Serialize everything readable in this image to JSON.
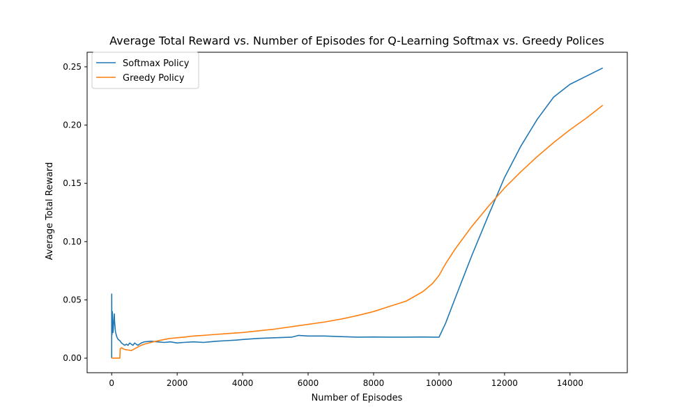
{
  "chart_data": {
    "type": "line",
    "title": "Average Total Reward vs. Number of Episodes for Q-Learning Softmax vs. Greedy Polices",
    "xlabel": "Number of Episodes",
    "ylabel": "Average Total Reward",
    "xlim": [
      -750,
      15750
    ],
    "ylim": [
      -0.0125,
      0.2625
    ],
    "xticks": [
      0,
      2000,
      4000,
      6000,
      8000,
      10000,
      12000,
      14000
    ],
    "xtick_labels": [
      "0",
      "2000",
      "4000",
      "6000",
      "8000",
      "10000",
      "12000",
      "14000"
    ],
    "yticks": [
      0.0,
      0.05,
      0.1,
      0.15,
      0.2,
      0.25
    ],
    "ytick_labels": [
      "0.00",
      "0.05",
      "0.10",
      "0.15",
      "0.20",
      "0.25"
    ],
    "grid": false,
    "legend_position": "upper-left",
    "series": [
      {
        "name": "Softmax Policy",
        "color": "#1f77b4",
        "x": [
          0,
          1,
          5,
          10,
          15,
          20,
          30,
          40,
          50,
          60,
          70,
          80,
          90,
          100,
          110,
          120,
          140,
          160,
          180,
          200,
          250,
          300,
          350,
          400,
          450,
          500,
          550,
          600,
          650,
          700,
          750,
          800,
          900,
          1000,
          1200,
          1400,
          1600,
          1800,
          2000,
          2200,
          2500,
          2800,
          3000,
          3200,
          3500,
          3800,
          4000,
          4500,
          5000,
          5500,
          5700,
          6000,
          6500,
          7000,
          7500,
          8000,
          8500,
          9000,
          9500,
          9800,
          10000,
          10200,
          10500,
          11000,
          11500,
          12000,
          12500,
          13000,
          13500,
          14000,
          14500,
          15000
        ],
        "y": [
          0.0,
          0.055,
          0.03,
          0.02,
          0.033,
          0.04,
          0.028,
          0.022,
          0.025,
          0.03,
          0.035,
          0.038,
          0.031,
          0.028,
          0.024,
          0.022,
          0.02,
          0.018,
          0.017,
          0.016,
          0.015,
          0.013,
          0.012,
          0.011,
          0.012,
          0.011,
          0.013,
          0.012,
          0.011,
          0.013,
          0.012,
          0.011,
          0.013,
          0.014,
          0.0145,
          0.014,
          0.0135,
          0.014,
          0.013,
          0.0135,
          0.014,
          0.0135,
          0.014,
          0.0145,
          0.015,
          0.0155,
          0.016,
          0.017,
          0.0175,
          0.018,
          0.0195,
          0.019,
          0.019,
          0.0185,
          0.018,
          0.0182,
          0.018,
          0.018,
          0.0182,
          0.018,
          0.018,
          0.03,
          0.052,
          0.088,
          0.122,
          0.155,
          0.182,
          0.205,
          0.224,
          0.235,
          0.242,
          0.249
        ]
      },
      {
        "name": "Greedy Policy",
        "color": "#ff7f0e",
        "x": [
          0,
          100,
          200,
          250,
          260,
          300,
          350,
          400,
          450,
          500,
          550,
          600,
          700,
          800,
          900,
          1000,
          1200,
          1400,
          1600,
          1800,
          2000,
          2200,
          2500,
          2800,
          3000,
          3500,
          4000,
          4500,
          5000,
          5500,
          6000,
          6500,
          7000,
          7500,
          8000,
          8500,
          9000,
          9500,
          9800,
          10000,
          10200,
          10500,
          11000,
          11500,
          12000,
          12500,
          13000,
          13500,
          14000,
          14500,
          15000
        ],
        "y": [
          0.0,
          0.0,
          0.0,
          0.0,
          0.008,
          0.009,
          0.008,
          0.0075,
          0.0072,
          0.007,
          0.0068,
          0.0065,
          0.008,
          0.0095,
          0.011,
          0.012,
          0.0135,
          0.0148,
          0.016,
          0.017,
          0.0175,
          0.018,
          0.019,
          0.0195,
          0.02,
          0.021,
          0.022,
          0.0235,
          0.025,
          0.027,
          0.029,
          0.031,
          0.0335,
          0.0365,
          0.04,
          0.0445,
          0.049,
          0.057,
          0.064,
          0.071,
          0.081,
          0.094,
          0.113,
          0.13,
          0.146,
          0.16,
          0.173,
          0.185,
          0.196,
          0.206,
          0.217
        ]
      }
    ]
  }
}
